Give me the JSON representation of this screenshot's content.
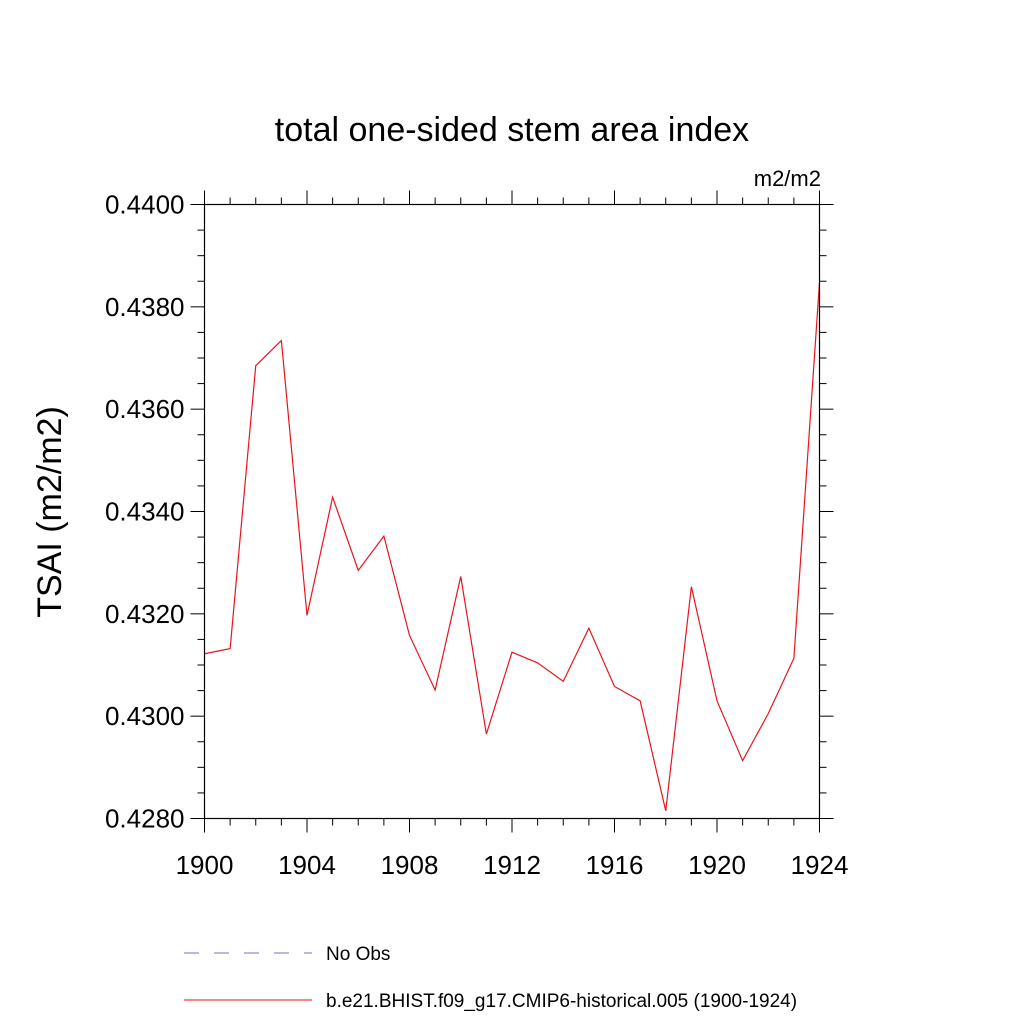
{
  "chart_data": {
    "type": "line",
    "title": "total one-sided stem area index",
    "units": "m2/m2",
    "xlabel": "",
    "ylabel": "TSAI  (m2/m2)",
    "xlim": [
      1900,
      1924
    ],
    "ylim": [
      0.428,
      0.44
    ],
    "x_ticks": [
      1900,
      1904,
      1908,
      1912,
      1916,
      1920,
      1924
    ],
    "x_tick_labels": [
      "1900",
      "1904",
      "1908",
      "1912",
      "1916",
      "1920",
      "1924"
    ],
    "y_ticks": [
      0.428,
      0.43,
      0.432,
      0.434,
      0.436,
      0.438,
      0.44
    ],
    "y_tick_labels": [
      "0.4280",
      "0.4300",
      "0.4320",
      "0.4340",
      "0.4360",
      "0.4380",
      "0.4400"
    ],
    "grid": false,
    "legend_position": "bottom",
    "series": [
      {
        "name": "b.e21.BHIST.f09_g17.CMIP6-historical.005 (1900-1924)",
        "color": "#e8141c",
        "style": "solid",
        "x": [
          1900,
          1901,
          1902,
          1903,
          1904,
          1905,
          1906,
          1907,
          1908,
          1909,
          1910,
          1911,
          1912,
          1913,
          1914,
          1915,
          1916,
          1917,
          1918,
          1919,
          1920,
          1921,
          1922,
          1923,
          1924
        ],
        "values": [
          0.43122,
          0.43132,
          0.43685,
          0.43734,
          0.43197,
          0.43428,
          0.43285,
          0.43352,
          0.43158,
          0.43051,
          0.43273,
          0.42965,
          0.43125,
          0.43104,
          0.43068,
          0.43172,
          0.43058,
          0.4303,
          0.42815,
          0.43253,
          0.4303,
          0.42913,
          0.43005,
          0.43113,
          0.43848
        ]
      }
    ],
    "legend": [
      {
        "label": "No Obs",
        "color": "#7a6fc4",
        "style": "dashed"
      },
      {
        "label": "b.e21.BHIST.f09_g17.CMIP6-historical.005 (1900-1924)",
        "color": "#e8141c",
        "style": "solid"
      }
    ]
  }
}
